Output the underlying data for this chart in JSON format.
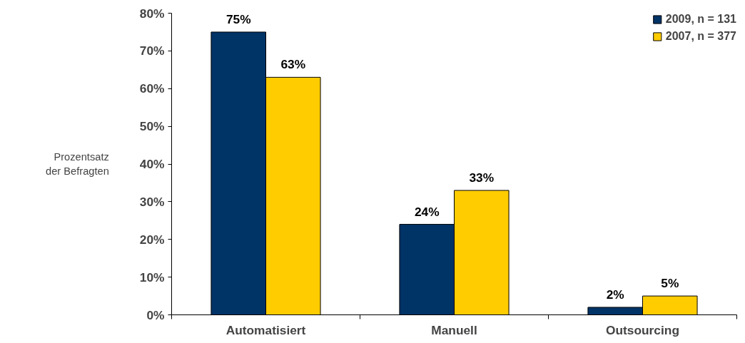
{
  "chart_data": {
    "type": "bar",
    "ylabel": "Prozentsatz der Befragten",
    "categories": [
      "Automatisiert",
      "Manuell",
      "Outsourcing"
    ],
    "series": [
      {
        "name": "2009, n = 131",
        "color": "#003366",
        "values": [
          75,
          24,
          2
        ],
        "value_labels": [
          "75%",
          "24%",
          "2%"
        ]
      },
      {
        "name": "2007, n = 377",
        "color": "#ffcc00",
        "values": [
          63,
          33,
          5
        ],
        "value_labels": [
          "63%",
          "33%",
          "5%"
        ]
      }
    ],
    "ylim": [
      0,
      80
    ],
    "yticks": [
      {
        "value": 0,
        "label": "0%"
      },
      {
        "value": 10,
        "label": "10%"
      },
      {
        "value": 20,
        "label": "20%"
      },
      {
        "value": 30,
        "label": "30%"
      },
      {
        "value": 40,
        "label": "40%"
      },
      {
        "value": 50,
        "label": "50%"
      },
      {
        "value": 60,
        "label": "60%"
      },
      {
        "value": 70,
        "label": "70%"
      },
      {
        "value": 80,
        "label": "80%"
      }
    ],
    "grid": false,
    "legend": "top right"
  }
}
